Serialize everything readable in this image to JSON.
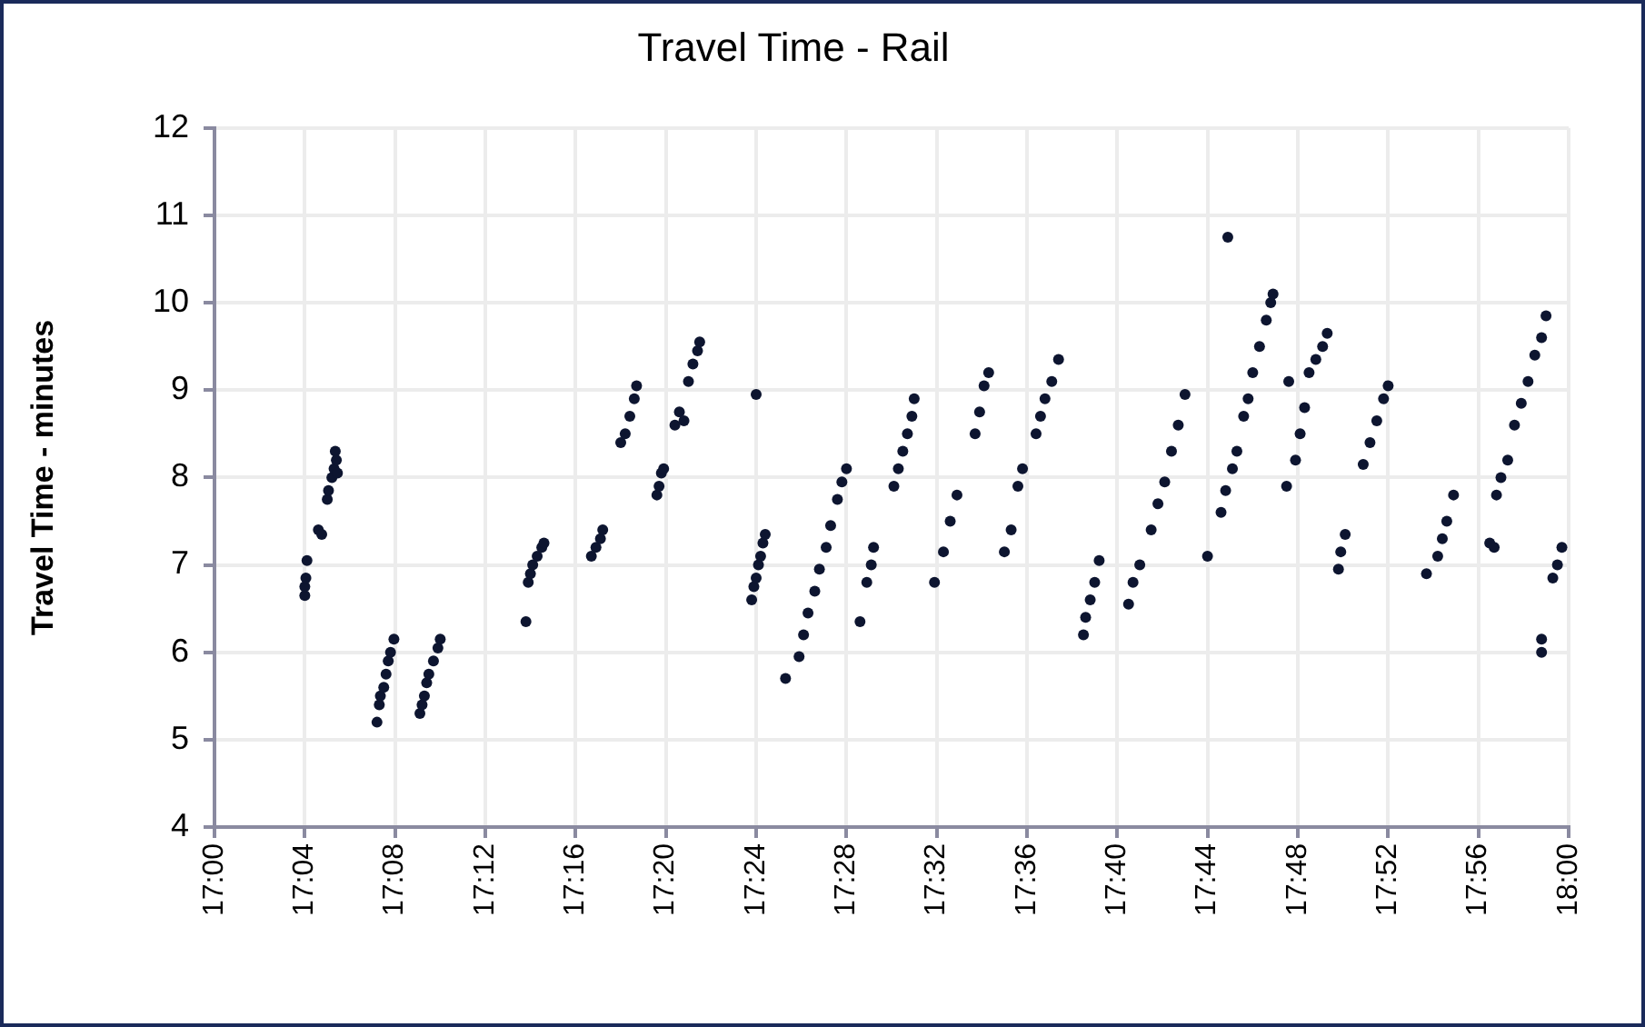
{
  "chart_data": {
    "type": "scatter",
    "title": "Travel Time - Rail",
    "ylabel": "Travel Time - minutes",
    "xlim": [
      17,
      18
    ],
    "ylim": [
      4,
      12
    ],
    "xticks": [
      {
        "value": 17,
        "label": "17:00"
      },
      {
        "value": 17.0667,
        "label": "17:04"
      },
      {
        "value": 17.1333,
        "label": "17:08"
      },
      {
        "value": 17.2,
        "label": "17:12"
      },
      {
        "value": 17.2667,
        "label": "17:16"
      },
      {
        "value": 17.3333,
        "label": "17:20"
      },
      {
        "value": 17.4,
        "label": "17:24"
      },
      {
        "value": 17.4667,
        "label": "17:28"
      },
      {
        "value": 17.5333,
        "label": "17:32"
      },
      {
        "value": 17.6,
        "label": "17:36"
      },
      {
        "value": 17.6667,
        "label": "17:40"
      },
      {
        "value": 17.7333,
        "label": "17:44"
      },
      {
        "value": 17.8,
        "label": "17:48"
      },
      {
        "value": 17.8667,
        "label": "17:52"
      },
      {
        "value": 17.9333,
        "label": "17:56"
      },
      {
        "value": 18,
        "label": "18:00"
      }
    ],
    "yticks": [
      4,
      5,
      6,
      7,
      8,
      9,
      10,
      11,
      12
    ],
    "grid": true,
    "legend": false,
    "marker": "circle",
    "series": [
      {
        "color": "#0d1530",
        "x": [
          17.0667,
          17.0667,
          17.0675,
          17.0683,
          17.0767,
          17.0792,
          17.0833,
          17.0842,
          17.0867,
          17.0883,
          17.0892,
          17.09,
          17.0908,
          17.12,
          17.1217,
          17.1225,
          17.125,
          17.1267,
          17.1283,
          17.13,
          17.1325,
          17.1517,
          17.1533,
          17.155,
          17.1567,
          17.1583,
          17.1617,
          17.165,
          17.1667,
          17.23,
          17.2317,
          17.2333,
          17.235,
          17.2383,
          17.2417,
          17.2433,
          17.2783,
          17.2817,
          17.285,
          17.2867,
          17.3,
          17.3033,
          17.3067,
          17.31,
          17.3117,
          17.3267,
          17.3283,
          17.33,
          17.3317,
          17.34,
          17.3433,
          17.3467,
          17.35,
          17.3533,
          17.3567,
          17.3583,
          17.4,
          17.3967,
          17.3983,
          17.4,
          17.4017,
          17.4033,
          17.405,
          17.4067,
          17.4217,
          17.4317,
          17.435,
          17.4383,
          17.4433,
          17.4467,
          17.4517,
          17.455,
          17.46,
          17.4633,
          17.4667,
          17.4767,
          17.4817,
          17.485,
          17.4867,
          17.5017,
          17.505,
          17.5083,
          17.5117,
          17.515,
          17.5167,
          17.5317,
          17.5383,
          17.5433,
          17.5483,
          17.5617,
          17.565,
          17.5683,
          17.5717,
          17.5833,
          17.5883,
          17.5933,
          17.5967,
          17.6067,
          17.61,
          17.6133,
          17.6183,
          17.6233,
          17.6417,
          17.6433,
          17.6467,
          17.65,
          17.6533,
          17.675,
          17.6783,
          17.6833,
          17.6917,
          17.6967,
          17.7017,
          17.7067,
          17.7117,
          17.7167,
          17.7333,
          17.7483,
          17.7433,
          17.7467,
          17.7517,
          17.755,
          17.76,
          17.7633,
          17.7667,
          17.7717,
          17.7767,
          17.78,
          17.7817,
          17.7917,
          17.7933,
          17.7983,
          17.8017,
          17.805,
          17.8083,
          17.8133,
          17.8183,
          17.8217,
          17.83,
          17.8317,
          17.835,
          17.8483,
          17.8533,
          17.8583,
          17.8633,
          17.8667,
          17.895,
          17.9033,
          17.9067,
          17.91,
          17.915,
          17.9417,
          17.945,
          17.9467,
          17.95,
          17.955,
          17.96,
          17.965,
          17.97,
          17.975,
          17.98,
          17.9833,
          17.98,
          17.98,
          17.9883,
          17.9917,
          17.995
        ],
        "values": [
          6.65,
          6.75,
          6.85,
          7.05,
          7.4,
          7.35,
          7.75,
          7.85,
          8.0,
          8.1,
          8.3,
          8.2,
          8.05,
          5.2,
          5.4,
          5.5,
          5.6,
          5.75,
          5.9,
          6.0,
          6.15,
          5.3,
          5.4,
          5.5,
          5.65,
          5.75,
          5.9,
          6.05,
          6.15,
          6.35,
          6.8,
          6.9,
          7.0,
          7.1,
          7.2,
          7.25,
          7.1,
          7.2,
          7.3,
          7.4,
          8.4,
          8.5,
          8.7,
          8.9,
          9.05,
          7.8,
          7.9,
          8.05,
          8.1,
          8.6,
          8.75,
          8.65,
          9.1,
          9.3,
          9.45,
          9.55,
          8.95,
          6.6,
          6.75,
          6.85,
          7.0,
          7.1,
          7.25,
          7.35,
          5.7,
          5.95,
          6.2,
          6.45,
          6.7,
          6.95,
          7.2,
          7.45,
          7.75,
          7.95,
          8.1,
          6.35,
          6.8,
          7.0,
          7.2,
          7.9,
          8.1,
          8.3,
          8.5,
          8.7,
          8.9,
          6.8,
          7.15,
          7.5,
          7.8,
          8.5,
          8.75,
          9.05,
          9.2,
          7.15,
          7.4,
          7.9,
          8.1,
          8.5,
          8.7,
          8.9,
          9.1,
          9.35,
          6.2,
          6.4,
          6.6,
          6.8,
          7.05,
          6.55,
          6.8,
          7.0,
          7.4,
          7.7,
          7.95,
          8.3,
          8.6,
          8.95,
          7.1,
          10.75,
          7.6,
          7.85,
          8.1,
          8.3,
          8.7,
          8.9,
          9.2,
          9.5,
          9.8,
          10.0,
          10.1,
          7.9,
          9.1,
          8.2,
          8.5,
          8.8,
          9.2,
          9.35,
          9.5,
          9.65,
          6.95,
          7.15,
          7.35,
          8.15,
          8.4,
          8.65,
          8.9,
          9.05,
          6.9,
          7.1,
          7.3,
          7.5,
          7.8,
          7.25,
          7.2,
          7.8,
          8.0,
          8.2,
          8.6,
          8.85,
          9.1,
          9.4,
          9.6,
          9.85,
          6.0,
          6.15,
          6.85,
          7.0,
          7.2
        ]
      }
    ]
  }
}
